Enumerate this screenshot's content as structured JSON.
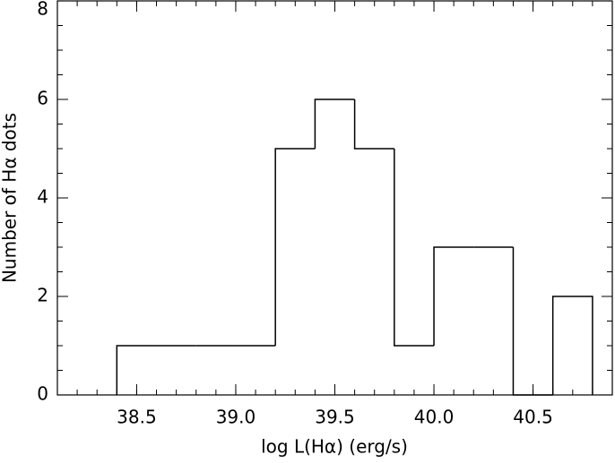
{
  "chart_data": {
    "type": "histogram",
    "bins": [
      38.4,
      38.6,
      38.8,
      39.0,
      39.2,
      39.4,
      39.6,
      39.8,
      40.0,
      40.2,
      40.4,
      40.6,
      40.8
    ],
    "values": [
      1,
      1,
      1,
      1,
      5,
      6,
      5,
      1,
      3,
      3,
      0,
      2
    ],
    "color": "#000000",
    "x_label": "log L(Hα) (erg/s)",
    "y_label": "Number of Hα dots",
    "xlim": [
      38.1,
      40.9
    ],
    "ylim": [
      0,
      8
    ],
    "xticks": [
      38.5,
      {
        "value": 39,
        "label": "39.0"
      },
      39.5,
      {
        "value": 40,
        "label": "40.0"
      },
      40.5
    ],
    "yticks": [
      0,
      2,
      4,
      6,
      8
    ],
    "xminor_step": 0.1,
    "yminor_step": 0.5,
    "grid": false
  }
}
